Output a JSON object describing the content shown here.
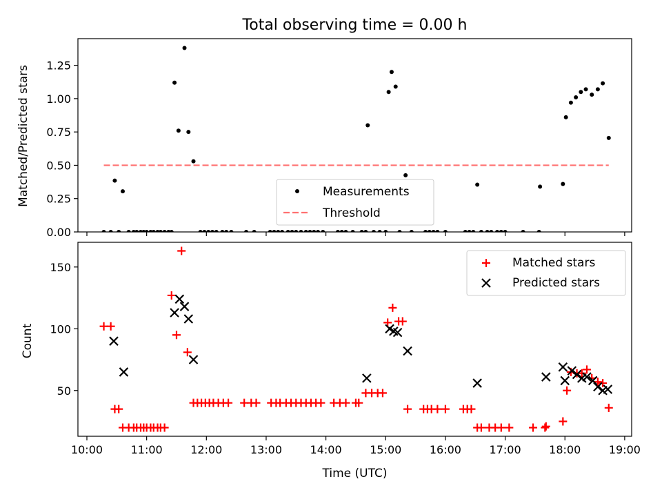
{
  "title": "Total observing time = 0.00 h",
  "chart_data": [
    {
      "type": "scatter",
      "ylabel": "Matched/Predicted stars",
      "xlabel": "",
      "xlim": [
        "10:00",
        "19:00"
      ],
      "ylim": [
        0,
        1.45
      ],
      "yticks": [
        "0.00",
        "0.25",
        "0.50",
        "0.75",
        "1.00",
        "1.25"
      ],
      "legend_position": "bottom-center",
      "series": [
        {
          "name": "Measurements",
          "color": "#000000",
          "marker": "dot",
          "points": [
            [
              "10:17",
              0
            ],
            [
              "10:24",
              0
            ],
            [
              "10:28",
              0.385
            ],
            [
              "10:32",
              0
            ],
            [
              "10:36",
              0.305
            ],
            [
              "10:42",
              0
            ],
            [
              "10:47",
              0
            ],
            [
              "10:50",
              0
            ],
            [
              "10:54",
              0
            ],
            [
              "10:57",
              0
            ],
            [
              "11:00",
              0
            ],
            [
              "11:04",
              0
            ],
            [
              "11:07",
              0
            ],
            [
              "11:11",
              0
            ],
            [
              "11:14",
              0
            ],
            [
              "11:18",
              0
            ],
            [
              "11:22",
              0
            ],
            [
              "11:25",
              0.0
            ],
            [
              "11:28",
              1.12
            ],
            [
              "11:32",
              0.76
            ],
            [
              "11:38",
              1.38
            ],
            [
              "11:42",
              0.75
            ],
            [
              "11:47",
              0.53
            ],
            [
              "11:54",
              0
            ],
            [
              "11:58",
              0
            ],
            [
              "12:02",
              0
            ],
            [
              "12:06",
              0
            ],
            [
              "12:10",
              0
            ],
            [
              "12:16",
              0
            ],
            [
              "12:20",
              0
            ],
            [
              "12:25",
              0
            ],
            [
              "12:40",
              0
            ],
            [
              "12:48",
              0
            ],
            [
              "13:04",
              0
            ],
            [
              "13:08",
              0
            ],
            [
              "13:12",
              0
            ],
            [
              "13:16",
              0
            ],
            [
              "13:22",
              0
            ],
            [
              "13:26",
              0
            ],
            [
              "13:30",
              0
            ],
            [
              "13:35",
              0
            ],
            [
              "13:40",
              0
            ],
            [
              "13:44",
              0
            ],
            [
              "13:48",
              0
            ],
            [
              "13:52",
              0
            ],
            [
              "13:57",
              0
            ],
            [
              "14:12",
              0
            ],
            [
              "14:16",
              0
            ],
            [
              "14:20",
              0
            ],
            [
              "14:27",
              0
            ],
            [
              "14:36",
              0
            ],
            [
              "14:40",
              0
            ],
            [
              "14:42",
              0.8
            ],
            [
              "14:48",
              0
            ],
            [
              "14:54",
              0
            ],
            [
              "15:00",
              0
            ],
            [
              "15:03",
              1.05
            ],
            [
              "15:06",
              1.2
            ],
            [
              "15:10",
              1.09
            ],
            [
              "15:14",
              0
            ],
            [
              "15:20",
              0.425
            ],
            [
              "15:26",
              0
            ],
            [
              "15:40",
              0
            ],
            [
              "15:44",
              0
            ],
            [
              "15:48",
              0
            ],
            [
              "15:52",
              0
            ],
            [
              "16:00",
              0
            ],
            [
              "16:20",
              0
            ],
            [
              "16:24",
              0
            ],
            [
              "16:28",
              0
            ],
            [
              "16:32",
              0.355
            ],
            [
              "16:36",
              0
            ],
            [
              "16:42",
              0
            ],
            [
              "16:46",
              0
            ],
            [
              "16:52",
              0
            ],
            [
              "16:56",
              0
            ],
            [
              "17:00",
              0
            ],
            [
              "17:18",
              0
            ],
            [
              "17:34",
              0
            ],
            [
              "17:35",
              0.34
            ],
            [
              "17:58",
              0.36
            ],
            [
              "18:01",
              0.86
            ],
            [
              "18:06",
              0.97
            ],
            [
              "18:11",
              1.01
            ],
            [
              "18:16",
              1.05
            ],
            [
              "18:21",
              1.07
            ],
            [
              "18:27",
              1.03
            ],
            [
              "18:33",
              1.07
            ],
            [
              "18:38",
              1.115
            ],
            [
              "18:44",
              0.705
            ]
          ]
        },
        {
          "name": "Threshold",
          "color": "#ff7070",
          "style": "dashed",
          "x": [
            "10:17",
            "18:44"
          ],
          "y": [
            0.5,
            0.5
          ]
        }
      ]
    },
    {
      "type": "scatter",
      "ylabel": "Count",
      "xlabel": "Time (UTC)",
      "xlim": [
        "10:00",
        "19:00"
      ],
      "ylim": [
        13,
        170
      ],
      "yticks": [
        "50",
        "100",
        "150"
      ],
      "xticks": [
        "10:00",
        "11:00",
        "12:00",
        "13:00",
        "14:00",
        "15:00",
        "16:00",
        "17:00",
        "18:00",
        "19:00"
      ],
      "legend_position": "top-right",
      "series": [
        {
          "name": "Matched stars",
          "color": "#ff0000",
          "marker": "plus",
          "points": [
            [
              "10:17",
              102
            ],
            [
              "10:24",
              102
            ],
            [
              "10:28",
              35
            ],
            [
              "10:32",
              35
            ],
            [
              "10:36",
              20
            ],
            [
              "10:42",
              20
            ],
            [
              "10:47",
              20
            ],
            [
              "10:50",
              20
            ],
            [
              "10:54",
              20
            ],
            [
              "10:57",
              20
            ],
            [
              "11:00",
              20
            ],
            [
              "11:04",
              20
            ],
            [
              "11:07",
              20
            ],
            [
              "11:11",
              20
            ],
            [
              "11:14",
              20
            ],
            [
              "11:18",
              20
            ],
            [
              "11:25",
              127
            ],
            [
              "11:30",
              95
            ],
            [
              "11:35",
              163
            ],
            [
              "11:41",
              81
            ],
            [
              "11:47",
              40
            ],
            [
              "11:51",
              40
            ],
            [
              "11:55",
              40
            ],
            [
              "11:59",
              40
            ],
            [
              "12:03",
              40
            ],
            [
              "12:07",
              40
            ],
            [
              "12:12",
              40
            ],
            [
              "12:17",
              40
            ],
            [
              "12:22",
              40
            ],
            [
              "12:38",
              40
            ],
            [
              "12:45",
              40
            ],
            [
              "12:50",
              40
            ],
            [
              "13:05",
              40
            ],
            [
              "13:10",
              40
            ],
            [
              "13:14",
              40
            ],
            [
              "13:20",
              40
            ],
            [
              "13:25",
              40
            ],
            [
              "13:30",
              40
            ],
            [
              "13:35",
              40
            ],
            [
              "13:40",
              40
            ],
            [
              "13:45",
              40
            ],
            [
              "13:50",
              40
            ],
            [
              "13:55",
              40
            ],
            [
              "14:08",
              40
            ],
            [
              "14:14",
              40
            ],
            [
              "14:20",
              40
            ],
            [
              "14:30",
              40
            ],
            [
              "14:33",
              40
            ],
            [
              "14:40",
              48
            ],
            [
              "14:46",
              48
            ],
            [
              "14:52",
              48
            ],
            [
              "14:57",
              48
            ],
            [
              "15:02",
              105
            ],
            [
              "15:07",
              117
            ],
            [
              "15:13",
              106
            ],
            [
              "15:17",
              106
            ],
            [
              "15:22",
              35
            ],
            [
              "15:38",
              35
            ],
            [
              "15:42",
              35
            ],
            [
              "15:46",
              35
            ],
            [
              "15:52",
              35
            ],
            [
              "16:00",
              35
            ],
            [
              "16:18",
              35
            ],
            [
              "16:22",
              35
            ],
            [
              "16:26",
              35
            ],
            [
              "16:32",
              20
            ],
            [
              "16:36",
              20
            ],
            [
              "16:44",
              20
            ],
            [
              "16:50",
              20
            ],
            [
              "16:56",
              20
            ],
            [
              "17:04",
              20
            ],
            [
              "17:28",
              20
            ],
            [
              "17:40",
              20
            ],
            [
              "17:41",
              21
            ],
            [
              "17:58",
              25
            ],
            [
              "18:02",
              50
            ],
            [
              "18:06",
              65
            ],
            [
              "18:12",
              64
            ],
            [
              "18:17",
              64
            ],
            [
              "18:22",
              67
            ],
            [
              "18:27",
              60
            ],
            [
              "18:33",
              57
            ],
            [
              "18:38",
              56
            ],
            [
              "18:44",
              36
            ]
          ]
        },
        {
          "name": "Predicted stars",
          "color": "#000000",
          "marker": "x",
          "points": [
            [
              "10:27",
              90
            ],
            [
              "10:37",
              65
            ],
            [
              "11:28",
              113
            ],
            [
              "11:33",
              124
            ],
            [
              "11:38",
              118
            ],
            [
              "11:42",
              108
            ],
            [
              "11:47",
              75
            ],
            [
              "14:41",
              60
            ],
            [
              "15:04",
              100
            ],
            [
              "15:08",
              98
            ],
            [
              "15:12",
              97
            ],
            [
              "15:22",
              82
            ],
            [
              "16:32",
              56
            ],
            [
              "17:41",
              61
            ],
            [
              "17:58",
              69
            ],
            [
              "18:00",
              58
            ],
            [
              "18:07",
              66
            ],
            [
              "18:12",
              63
            ],
            [
              "18:17",
              60
            ],
            [
              "18:22",
              61
            ],
            [
              "18:28",
              58
            ],
            [
              "18:33",
              53
            ],
            [
              "18:38",
              50
            ],
            [
              "18:43",
              51
            ]
          ]
        }
      ]
    }
  ]
}
